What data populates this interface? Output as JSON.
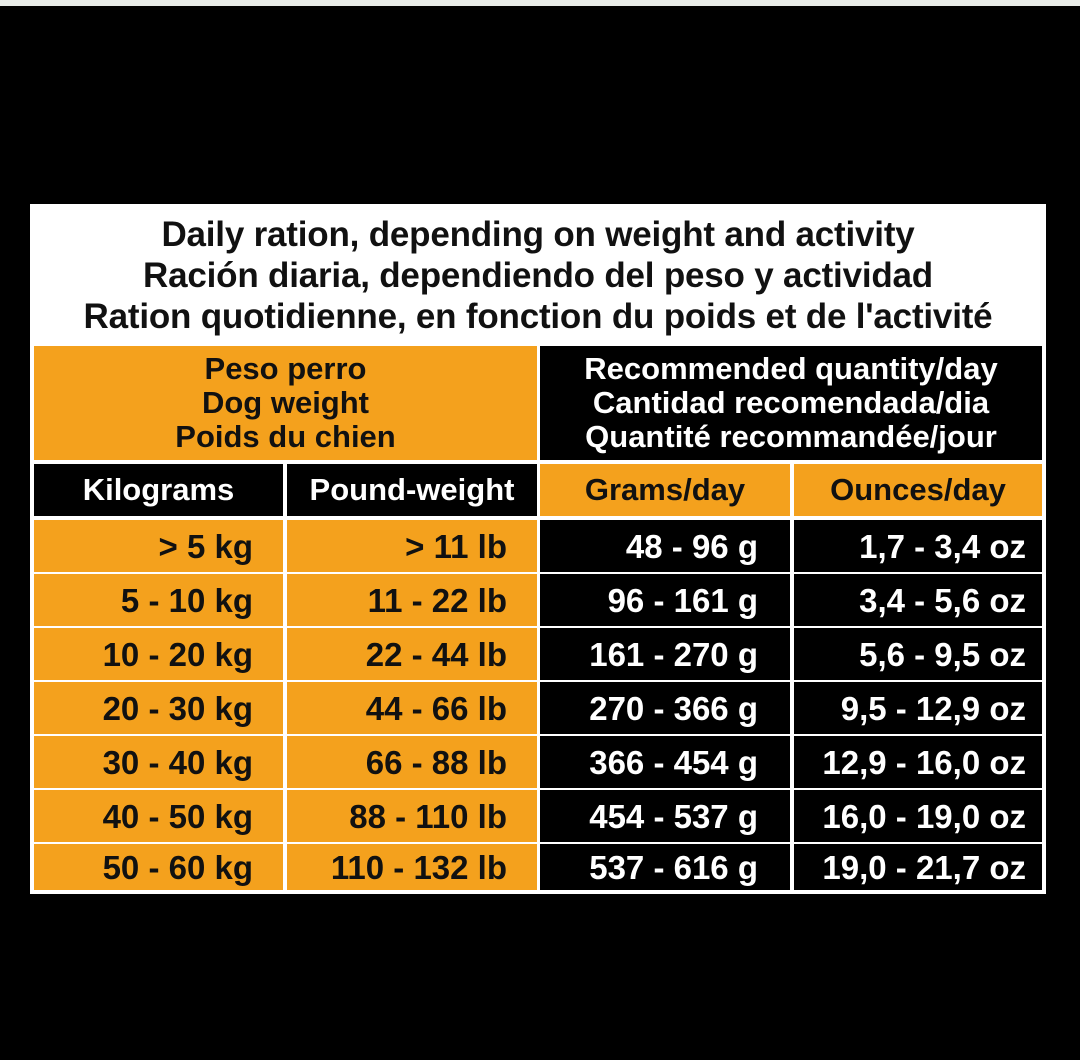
{
  "title": {
    "en": "Daily ration, depending on weight and activity",
    "es": "Ración diaria, dependiendo del peso y actividad",
    "fr": "Ration quotidienne, en fonction du poids et de l'activité"
  },
  "groups": {
    "dog_weight": [
      "Peso perro",
      "Dog weight",
      "Poids du chien"
    ],
    "quantity": [
      "Recommended quantity/day",
      "Cantidad recomendada/dia",
      "Quantité recommandée/jour"
    ]
  },
  "columns": [
    "Kilograms",
    "Pound-weight",
    "Grams/day",
    "Ounces/day"
  ],
  "rows": [
    [
      "> 5 kg",
      "> 11 lb",
      "48 - 96 g",
      "1,7 - 3,4 oz"
    ],
    [
      "5 - 10 kg",
      "11 - 22 lb",
      "96 - 161 g",
      "3,4 - 5,6 oz"
    ],
    [
      "10 - 20 kg",
      "22 - 44 lb",
      "161 - 270 g",
      "5,6 - 9,5 oz"
    ],
    [
      "20 - 30 kg",
      "44 - 66 lb",
      "270 - 366 g",
      "9,5 - 12,9 oz"
    ],
    [
      "30 - 40 kg",
      "66 - 88 lb",
      "366 - 454 g",
      "12,9 - 16,0 oz"
    ],
    [
      "40 - 50 kg",
      "88 - 110 lb",
      "454 - 537 g",
      "16,0 - 19,0 oz"
    ],
    [
      "50 - 60 kg",
      "110 - 132 lb",
      "537 - 616 g",
      "19,0 - 21,7 oz"
    ]
  ],
  "colors": {
    "orange": "#f4a11d",
    "black": "#000000",
    "white": "#ffffff"
  }
}
